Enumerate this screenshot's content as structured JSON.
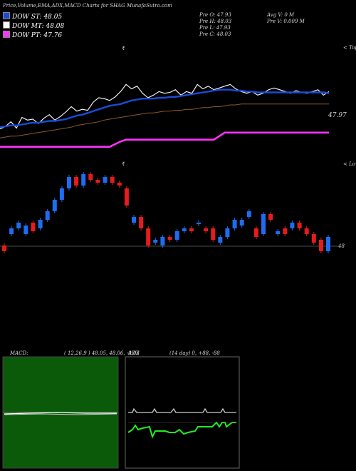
{
  "header": {
    "title": "Price,Volume,EMA,ADX,MACD Charts for SHAG MunafaSutra.com",
    "legend": [
      {
        "label": "DOW ST: 48.05",
        "color": "#1a4cd8"
      },
      {
        "label": "DOW MT: 48.08",
        "color": "#ffffff"
      },
      {
        "label": "DOW PT: 47.76",
        "color": "#ff33ff"
      }
    ],
    "prev": [
      "Pre  O: 47.93",
      "Pre  H: 48.03",
      "Pre  L: 47.93",
      "Pre  C: 48.03"
    ],
    "avg": [
      "Avg V: 0  M",
      "Pre  V: 0.009 M"
    ]
  },
  "labels": {
    "price_last": "47.97",
    "vol_last": "48",
    "top_tag": "< Top",
    "low_tag": "< Lowest",
    "star": "₹"
  },
  "macd": {
    "title": "MACD:",
    "values": "( 12,26,9 ) 48.05, 48.06, -0.03"
  },
  "adx": {
    "title": "ADX",
    "values": "(14  day) 0, +88, -88"
  },
  "colors": {
    "ema_short": "#1a4cd8",
    "up": "#1f6cf0",
    "down": "#e51c1c",
    "macd_bg": "#0a5a0a",
    "adx_green": "#22ee22"
  },
  "chart_data": {
    "type": "line",
    "series": [
      {
        "values": [
          47.8,
          47.83,
          47.88,
          47.81,
          47.93,
          47.9,
          47.91,
          47.86,
          47.92,
          47.96,
          47.9,
          47.94,
          47.99,
          48.05,
          48.0,
          48.02,
          48.01,
          48.1,
          48.15,
          48.14,
          48.12,
          48.16,
          48.22,
          48.3,
          48.25,
          48.28,
          48.2,
          48.15,
          48.18,
          48.22,
          48.2,
          48.21,
          48.24,
          48.18,
          48.22,
          48.2,
          48.3,
          48.25,
          48.28,
          48.24,
          48.26,
          48.28,
          48.3,
          48.25,
          48.22,
          48.2,
          48.22,
          48.18,
          48.2,
          48.24,
          48.26,
          48.24,
          48.22,
          48.2,
          48.23,
          48.21,
          48.2,
          48.22,
          48.24,
          48.18,
          48.22
        ]
      },
      {
        "values": [
          47.82,
          47.83,
          47.84,
          47.84,
          47.85,
          47.86,
          47.87,
          47.87,
          47.88,
          47.89,
          47.89,
          47.9,
          47.91,
          47.93,
          47.95,
          47.96,
          47.98,
          48.0,
          48.02,
          48.04,
          48.06,
          48.07,
          48.08,
          48.1,
          48.12,
          48.13,
          48.14,
          48.14,
          48.14,
          48.15,
          48.15,
          48.16,
          48.16,
          48.17,
          48.18,
          48.19,
          48.2,
          48.21,
          48.22,
          48.23,
          48.24,
          48.24,
          48.24,
          48.23,
          48.23,
          48.22,
          48.22,
          48.21,
          48.21,
          48.21,
          48.21,
          48.21,
          48.21,
          48.21,
          48.21,
          48.21,
          48.21,
          48.21,
          48.21,
          48.21,
          48.2
        ]
      },
      {
        "values": [
          47.7,
          47.71,
          47.72,
          47.72,
          47.73,
          47.74,
          47.75,
          47.76,
          47.77,
          47.78,
          47.79,
          47.8,
          47.81,
          47.82,
          47.84,
          47.85,
          47.86,
          47.87,
          47.88,
          47.9,
          47.91,
          47.92,
          47.93,
          47.94,
          47.95,
          47.96,
          47.97,
          47.98,
          47.98,
          47.99,
          48.0,
          48.0,
          48.01,
          48.01,
          48.02,
          48.02,
          48.03,
          48.04,
          48.04,
          48.05,
          48.05,
          48.06,
          48.07,
          48.07,
          48.08,
          48.08,
          48.08,
          48.08,
          48.08,
          48.08,
          48.08,
          48.08,
          48.08,
          48.08,
          48.08,
          48.08,
          48.08,
          48.08,
          48.08,
          48.08,
          48.08
        ]
      },
      {
        "values": [
          47.6,
          47.6,
          47.6,
          47.6,
          47.6,
          47.6,
          47.6,
          47.6,
          47.6,
          47.6,
          47.6,
          47.6,
          47.6,
          47.6,
          47.6,
          47.6,
          47.6,
          47.6,
          47.6,
          47.6,
          47.6,
          47.63,
          47.66,
          47.68,
          47.68,
          47.68,
          47.68,
          47.68,
          47.68,
          47.68,
          47.68,
          47.68,
          47.68,
          47.68,
          47.68,
          47.68,
          47.68,
          47.68,
          47.68,
          47.68,
          47.72,
          47.76,
          47.76,
          47.76,
          47.76,
          47.76,
          47.76,
          47.76,
          47.76,
          47.76,
          47.76,
          47.76,
          47.76,
          47.76,
          47.76,
          47.76,
          47.76,
          47.76,
          47.76,
          47.76,
          47.76
        ]
      }
    ],
    "bars": [
      {
        "o": 47.9,
        "c": 47.88
      },
      {
        "o": 47.94,
        "c": 47.96
      },
      {
        "o": 47.96,
        "c": 47.98
      },
      {
        "o": 47.94,
        "c": 47.97
      },
      {
        "o": 47.98,
        "c": 47.95
      },
      {
        "o": 47.96,
        "c": 47.99
      },
      {
        "o": 47.99,
        "c": 48.02
      },
      {
        "o": 48.02,
        "c": 48.06
      },
      {
        "o": 48.06,
        "c": 48.1
      },
      {
        "o": 48.1,
        "c": 48.14
      },
      {
        "o": 48.14,
        "c": 48.11
      },
      {
        "o": 48.11,
        "c": 48.15
      },
      {
        "o": 48.15,
        "c": 48.13
      },
      {
        "o": 48.13,
        "c": 48.12
      },
      {
        "o": 48.12,
        "c": 48.14
      },
      {
        "o": 48.14,
        "c": 48.12
      },
      {
        "o": 48.12,
        "c": 48.11
      },
      {
        "o": 48.1,
        "c": 48.04
      },
      {
        "o": 47.98,
        "c": 48.0
      },
      {
        "o": 48.0,
        "c": 47.96
      },
      {
        "o": 47.96,
        "c": 47.9
      },
      {
        "o": 47.91,
        "c": 47.92
      },
      {
        "o": 47.9,
        "c": 47.93
      },
      {
        "o": 47.93,
        "c": 47.92
      },
      {
        "o": 47.92,
        "c": 47.95
      },
      {
        "o": 47.95,
        "c": 47.96
      },
      {
        "o": 47.96,
        "c": 47.95
      },
      {
        "o": 47.98,
        "c": 47.98
      },
      {
        "o": 47.96,
        "c": 47.95
      },
      {
        "o": 47.96,
        "c": 47.92
      },
      {
        "o": 47.91,
        "c": 47.93
      },
      {
        "o": 47.93,
        "c": 47.96
      },
      {
        "o": 47.96,
        "c": 47.99
      },
      {
        "o": 47.97,
        "c": 47.99
      },
      {
        "o": 48.0,
        "c": 48.02
      },
      {
        "o": 47.96,
        "c": 47.93
      },
      {
        "o": 47.94,
        "c": 48.01
      },
      {
        "o": 48.01,
        "c": 47.99
      },
      {
        "o": 47.94,
        "c": 47.95
      },
      {
        "o": 47.96,
        "c": 47.94
      },
      {
        "o": 47.96,
        "c": 47.98
      },
      {
        "o": 47.98,
        "c": 47.96
      },
      {
        "o": 47.96,
        "c": 47.94
      },
      {
        "o": 47.94,
        "c": 47.91
      },
      {
        "o": 47.92,
        "c": 47.88
      },
      {
        "o": 47.88,
        "c": 47.93
      }
    ]
  }
}
